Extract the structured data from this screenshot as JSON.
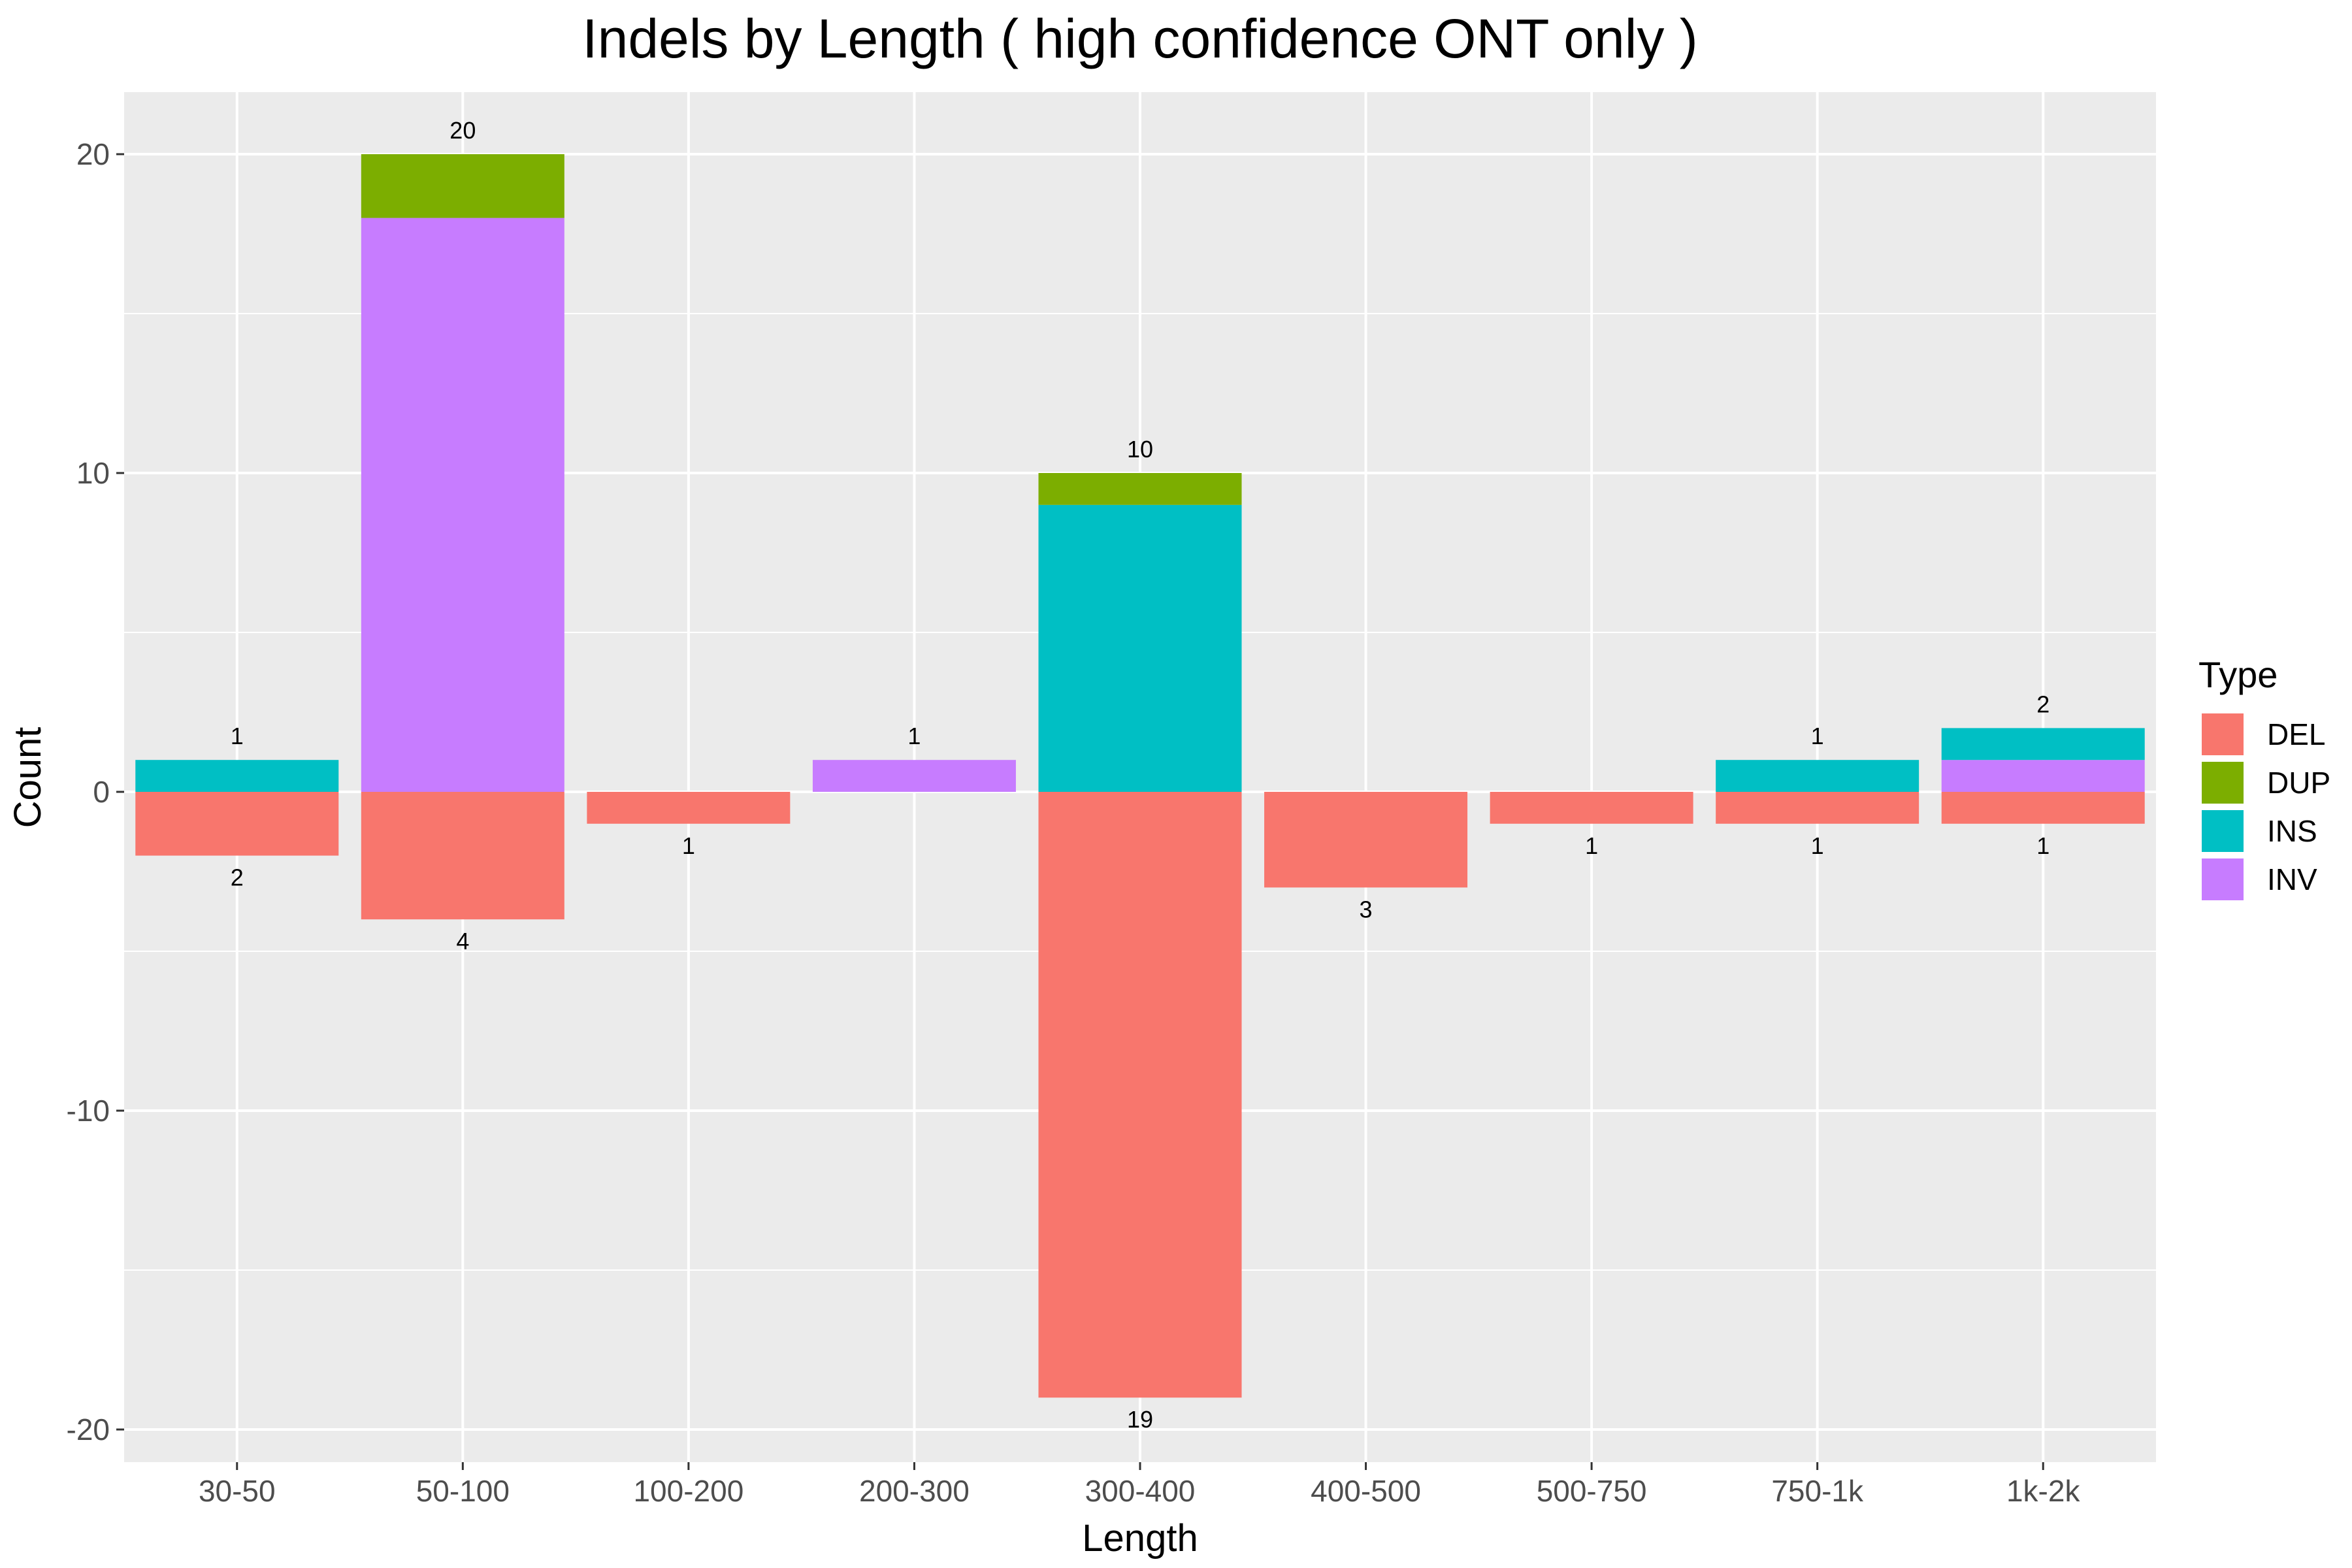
{
  "chart_data": {
    "type": "bar",
    "stacked": true,
    "title": "Indels by Length ( high confidence ONT only )",
    "xlabel": "Length",
    "ylabel": "Count",
    "categories": [
      "30-50",
      "50-100",
      "100-200",
      "200-300",
      "300-400",
      "400-500",
      "500-750",
      "750-1k",
      "1k-2k"
    ],
    "ylim": [
      -21,
      22
    ],
    "yticks": [
      -20,
      -10,
      0,
      10,
      20
    ],
    "grid": true,
    "legend": {
      "title": "Type",
      "position": "right"
    },
    "series": [
      {
        "name": "DEL",
        "color": "#F8766D",
        "values": [
          -2,
          -4,
          -1,
          0,
          -19,
          -3,
          -1,
          -1,
          -1
        ]
      },
      {
        "name": "DUP",
        "color": "#7CAE00",
        "values": [
          0,
          2,
          0,
          0,
          1,
          0,
          0,
          0,
          0
        ]
      },
      {
        "name": "INS",
        "color": "#00BFC4",
        "values": [
          1,
          0,
          0,
          0,
          9,
          0,
          0,
          1,
          1
        ]
      },
      {
        "name": "INV",
        "color": "#C77CFF",
        "values": [
          0,
          18,
          0,
          1,
          0,
          0,
          0,
          0,
          1
        ]
      }
    ],
    "labels_positive": [
      "1",
      "20",
      "",
      "1",
      "10",
      "",
      "",
      "1",
      "2"
    ],
    "labels_negative": [
      "2",
      "4",
      "1",
      "",
      "19",
      "3",
      "1",
      "1",
      "1"
    ]
  }
}
